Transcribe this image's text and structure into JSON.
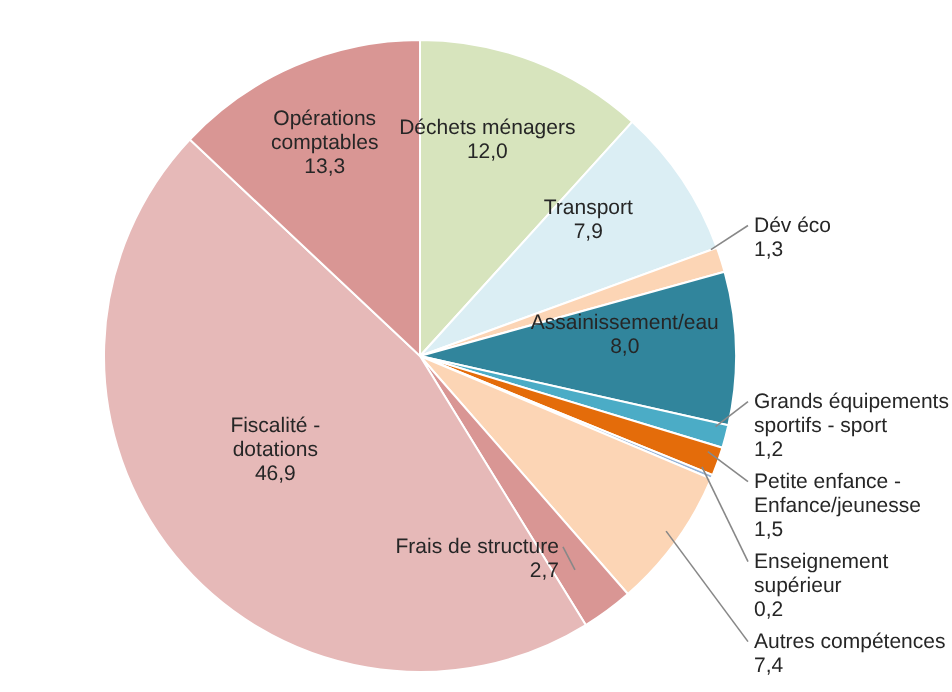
{
  "chart_data": {
    "type": "pie",
    "categories": [
      "Déchets ménagers",
      "Transport",
      "Dév éco",
      "Assainissement/eau",
      "Grands équipements sportifs - sport",
      "Petite enfance - Enfance/jeunesse",
      "Enseignement supérieur",
      "Autres compétences",
      "Frais de structure",
      "Fiscalité - dotations",
      "Opérations comptables"
    ],
    "values": [
      12.0,
      7.9,
      1.3,
      8.0,
      1.2,
      1.5,
      0.2,
      7.4,
      2.7,
      46.9,
      13.3
    ],
    "value_labels": [
      "12,0",
      "7,9",
      "1,3",
      "8,0",
      "1,2",
      "1,5",
      "0,2",
      "7,4",
      "2,7",
      "46,9",
      "13,3"
    ],
    "colors": [
      "#d7e4bd",
      "#dbeef4",
      "#fcd5b5",
      "#31859c",
      "#4bacc6",
      "#e46c0a",
      "#95b3d7",
      "#fcd5b5",
      "#d99694",
      "#e6b9b8",
      "#d99694"
    ]
  }
}
